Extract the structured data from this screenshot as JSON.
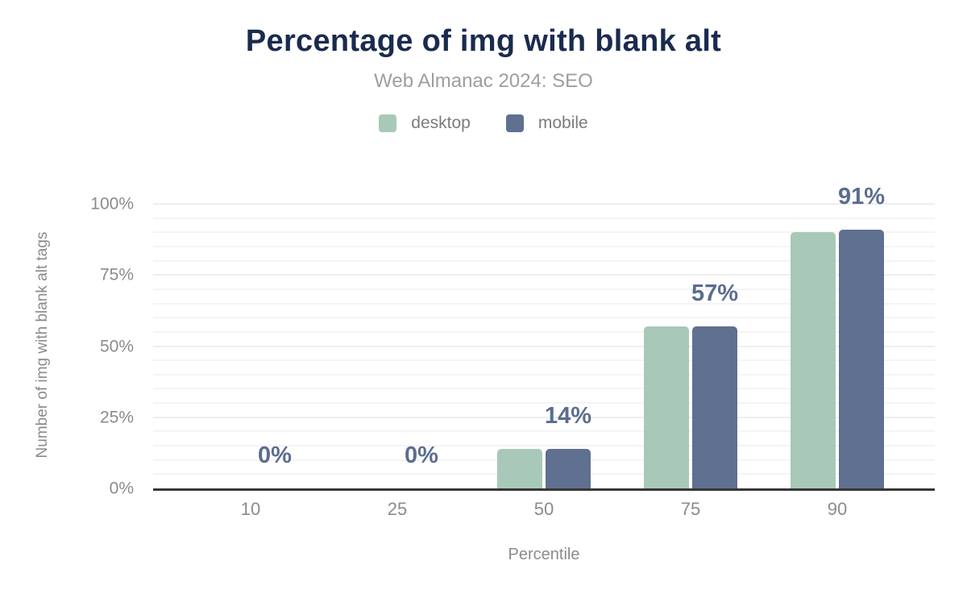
{
  "header": {
    "title": "Percentage of img with blank alt",
    "subtitle": "Web Almanac 2024: SEO"
  },
  "legend": [
    {
      "label": "desktop",
      "color": "#a8c9b8"
    },
    {
      "label": "mobile",
      "color": "#5f7090"
    }
  ],
  "chart_data": {
    "type": "bar",
    "title": "Percentage of img with blank alt",
    "subtitle": "Web Almanac 2024: SEO",
    "categories": [
      "10",
      "25",
      "50",
      "75",
      "90"
    ],
    "series": [
      {
        "name": "desktop",
        "color": "#a8c9b8",
        "values": [
          0,
          0,
          14,
          57,
          90
        ]
      },
      {
        "name": "mobile",
        "color": "#5f7090",
        "values": [
          0,
          0,
          14,
          57,
          91
        ]
      }
    ],
    "data_labels": [
      "0%",
      "0%",
      "14%",
      "57%",
      "91%"
    ],
    "data_label_anchor": "mobile",
    "xlabel": "Percentile",
    "ylabel": "Number of img with blank alt tags",
    "ylim": [
      0,
      100
    ],
    "yticks": [
      {
        "label": "0%",
        "value": 0
      },
      {
        "label": "25%",
        "value": 25
      },
      {
        "label": "50%",
        "value": 50
      },
      {
        "label": "75%",
        "value": 75
      },
      {
        "label": "100%",
        "value": 100
      }
    ],
    "grid": {
      "axis": "y",
      "interval_pct": 5
    },
    "legend_position": "top"
  },
  "colors": {
    "background": "#ffffff",
    "title_text": "#1a2b4f",
    "subtitle_text": "#9e9e9e",
    "legend_text": "#7b7b7b",
    "axis_text": "#8b8b8b",
    "data_label_text": "#5b6d8f",
    "gridline_minor": "#f4f4f4",
    "gridline_major": "#eeeeee",
    "axis_line": "#373737"
  }
}
